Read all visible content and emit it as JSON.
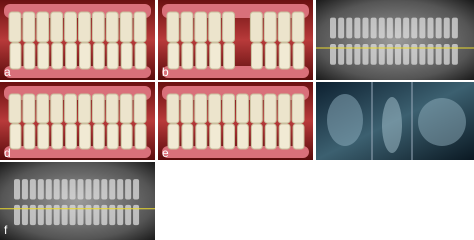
{
  "panels": [
    {
      "label": "a"
    },
    {
      "label": "b"
    },
    {
      "label": "d"
    },
    {
      "label": "e"
    },
    {
      "label": "f"
    }
  ]
}
